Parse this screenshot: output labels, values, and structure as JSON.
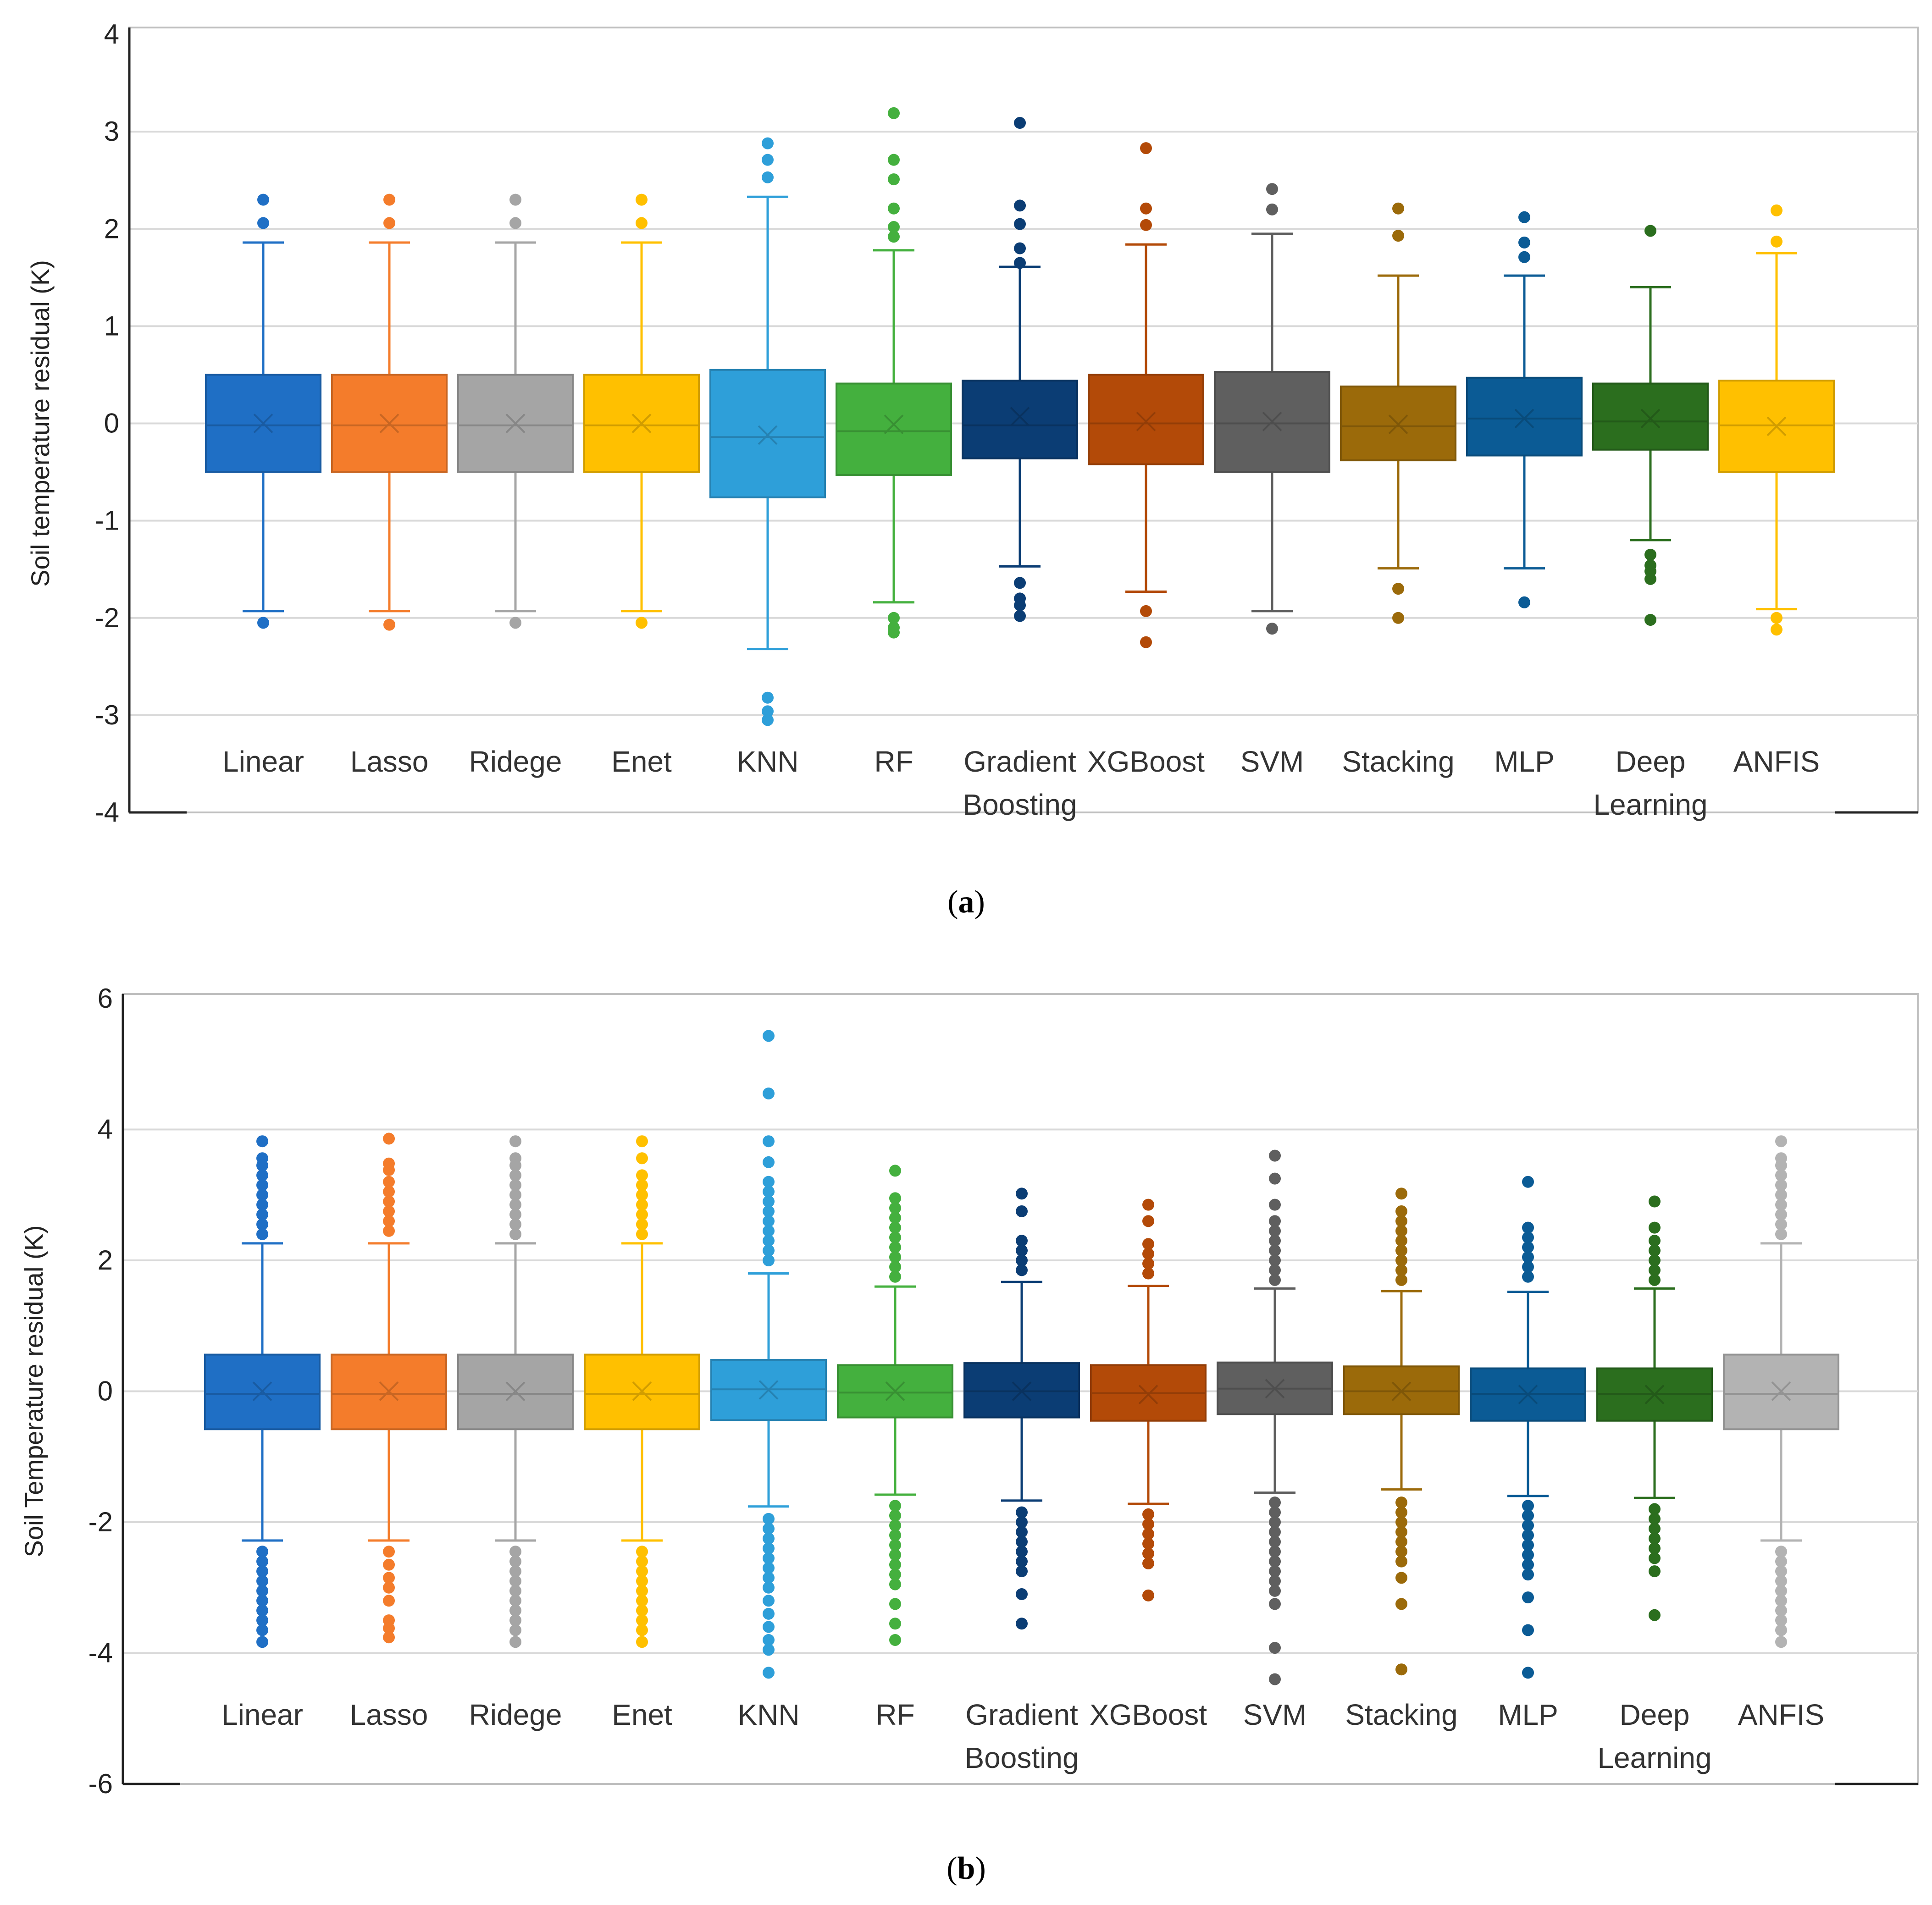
{
  "chart_data": [
    {
      "type": "box",
      "panel": "a",
      "caption_label": "a",
      "ylabel": "Soil temperature residual (K)",
      "ylim": [
        -4,
        4
      ],
      "yticks": [
        4,
        3,
        2,
        1,
        0,
        -1,
        -2,
        -3,
        -4
      ],
      "tick_labels": [
        "4",
        "3",
        "2",
        "1",
        "0",
        "-1",
        "-2",
        "-3",
        "-4"
      ],
      "grid": true,
      "series": [
        {
          "name": "Linear",
          "label_lines": [
            "Linear"
          ],
          "color": "#1f6fc5",
          "q1": -0.5,
          "median": -0.02,
          "q3": 0.5,
          "mean": 0.0,
          "wlo": -1.93,
          "whi": 1.86,
          "outliers": [
            2.3,
            2.06,
            -2.05
          ]
        },
        {
          "name": "Lasso",
          "label_lines": [
            "Lasso"
          ],
          "color": "#f47c2b",
          "q1": -0.5,
          "median": -0.02,
          "q3": 0.5,
          "mean": 0.0,
          "wlo": -1.93,
          "whi": 1.86,
          "outliers": [
            2.3,
            2.06,
            -2.07
          ]
        },
        {
          "name": "Ridege",
          "label_lines": [
            "Ridege"
          ],
          "color": "#a5a5a5",
          "q1": -0.5,
          "median": -0.02,
          "q3": 0.5,
          "mean": 0.0,
          "wlo": -1.93,
          "whi": 1.86,
          "outliers": [
            2.3,
            2.06,
            -2.05
          ]
        },
        {
          "name": "Enet",
          "label_lines": [
            "Enet"
          ],
          "color": "#ffc000",
          "q1": -0.5,
          "median": -0.02,
          "q3": 0.5,
          "mean": 0.0,
          "wlo": -1.93,
          "whi": 1.86,
          "outliers": [
            2.3,
            2.06,
            -2.05
          ]
        },
        {
          "name": "KNN",
          "label_lines": [
            "KNN"
          ],
          "color": "#2e9fd9",
          "q1": -0.76,
          "median": -0.14,
          "q3": 0.55,
          "mean": -0.12,
          "wlo": -2.32,
          "whi": 2.33,
          "outliers": [
            2.88,
            2.71,
            2.53,
            -2.82,
            -2.96,
            -3.05
          ]
        },
        {
          "name": "RF",
          "label_lines": [
            "RF"
          ],
          "color": "#44b03e",
          "q1": -0.53,
          "median": -0.08,
          "q3": 0.41,
          "mean": -0.01,
          "wlo": -1.84,
          "whi": 1.78,
          "outliers": [
            3.19,
            2.71,
            2.51,
            2.21,
            2.02,
            1.92,
            -2.0,
            -2.1,
            -2.15
          ]
        },
        {
          "name": "Gradient Boosting",
          "label_lines": [
            "Gradient",
            "Boosting"
          ],
          "color": "#0b3d74",
          "q1": -0.36,
          "median": -0.02,
          "q3": 0.44,
          "mean": 0.07,
          "wlo": -1.47,
          "whi": 1.61,
          "outliers": [
            3.09,
            2.24,
            2.05,
            1.8,
            1.65,
            -1.64,
            -1.8,
            -1.87,
            -1.98
          ]
        },
        {
          "name": "XGBoost",
          "label_lines": [
            "XGBoost"
          ],
          "color": "#b34a08",
          "q1": -0.42,
          "median": 0.0,
          "q3": 0.5,
          "mean": 0.02,
          "wlo": -1.73,
          "whi": 1.84,
          "outliers": [
            2.83,
            2.21,
            2.04,
            -1.93,
            -2.25
          ]
        },
        {
          "name": "SVM",
          "label_lines": [
            "SVM"
          ],
          "color": "#5f5f5f",
          "q1": -0.5,
          "median": 0.0,
          "q3": 0.53,
          "mean": 0.02,
          "wlo": -1.93,
          "whi": 1.95,
          "outliers": [
            2.41,
            2.2,
            -2.11
          ]
        },
        {
          "name": "Stacking",
          "label_lines": [
            "Stacking"
          ],
          "color": "#9b6a0a",
          "q1": -0.38,
          "median": -0.03,
          "q3": 0.38,
          "mean": -0.01,
          "wlo": -1.49,
          "whi": 1.52,
          "outliers": [
            2.21,
            1.93,
            -1.7,
            -2.0
          ]
        },
        {
          "name": "MLP",
          "label_lines": [
            "MLP"
          ],
          "color": "#0b5b95",
          "q1": -0.33,
          "median": 0.05,
          "q3": 0.47,
          "mean": 0.05,
          "wlo": -1.49,
          "whi": 1.52,
          "outliers": [
            2.12,
            1.86,
            1.71,
            -1.84
          ]
        },
        {
          "name": "Deep Learning",
          "label_lines": [
            "Deep",
            "Learning"
          ],
          "color": "#2b6e1e",
          "q1": -0.27,
          "median": 0.02,
          "q3": 0.41,
          "mean": 0.05,
          "wlo": -1.2,
          "whi": 1.4,
          "outliers": [
            1.98,
            -1.35,
            -1.46,
            -1.52,
            -1.6,
            -2.02
          ]
        },
        {
          "name": "ANFIS",
          "label_lines": [
            "ANFIS"
          ],
          "color": "#ffc000",
          "q1": -0.5,
          "median": -0.02,
          "q3": 0.44,
          "mean": -0.03,
          "wlo": -1.91,
          "whi": 1.75,
          "outliers": [
            2.19,
            1.87,
            -2.0,
            -2.12
          ]
        }
      ]
    },
    {
      "type": "box",
      "panel": "b",
      "caption_label": "b",
      "ylabel": "Soil Temperature residual (K)",
      "ylim": [
        -6,
        6
      ],
      "yticks": [
        6,
        4,
        2,
        0,
        -2,
        -4,
        -6
      ],
      "tick_labels": [
        "6",
        "4",
        "2",
        "0",
        "-2",
        "-4",
        "-6"
      ],
      "grid": true,
      "series": [
        {
          "name": "Linear",
          "label_lines": [
            "Linear"
          ],
          "color": "#1f6fc5",
          "q1": -0.58,
          "median": -0.04,
          "q3": 0.56,
          "mean": 0.0,
          "wlo": -2.28,
          "whi": 2.26,
          "outliers": [
            3.82,
            3.56,
            3.45,
            3.3,
            3.15,
            3.0,
            2.85,
            2.7,
            2.55,
            2.4,
            -2.45,
            -2.6,
            -2.75,
            -2.9,
            -3.05,
            -3.2,
            -3.35,
            -3.5,
            -3.65,
            -3.83
          ]
        },
        {
          "name": "Lasso",
          "label_lines": [
            "Lasso"
          ],
          "color": "#f47c2b",
          "q1": -0.58,
          "median": -0.04,
          "q3": 0.56,
          "mean": 0.0,
          "wlo": -2.28,
          "whi": 2.26,
          "outliers": [
            3.86,
            3.48,
            3.38,
            3.2,
            3.05,
            2.9,
            2.75,
            2.6,
            2.45,
            -2.45,
            -2.65,
            -2.85,
            -3.0,
            -3.2,
            -3.5,
            -3.62,
            -3.76
          ]
        },
        {
          "name": "Ridege",
          "label_lines": [
            "Ridege"
          ],
          "color": "#a5a5a5",
          "q1": -0.58,
          "median": -0.04,
          "q3": 0.56,
          "mean": 0.0,
          "wlo": -2.28,
          "whi": 2.26,
          "outliers": [
            3.82,
            3.56,
            3.45,
            3.3,
            3.15,
            3.0,
            2.85,
            2.7,
            2.55,
            2.4,
            -2.45,
            -2.6,
            -2.75,
            -2.9,
            -3.05,
            -3.2,
            -3.35,
            -3.5,
            -3.65,
            -3.83
          ]
        },
        {
          "name": "Enet",
          "label_lines": [
            "Enet"
          ],
          "color": "#ffc000",
          "q1": -0.58,
          "median": -0.04,
          "q3": 0.56,
          "mean": 0.0,
          "wlo": -2.28,
          "whi": 2.26,
          "outliers": [
            3.82,
            3.56,
            3.3,
            3.15,
            3.0,
            2.85,
            2.7,
            2.55,
            2.4,
            -2.45,
            -2.6,
            -2.75,
            -2.9,
            -3.05,
            -3.2,
            -3.35,
            -3.5,
            -3.65,
            -3.83
          ]
        },
        {
          "name": "KNN",
          "label_lines": [
            "KNN"
          ],
          "color": "#2e9fd9",
          "q1": -0.44,
          "median": 0.03,
          "q3": 0.48,
          "mean": 0.02,
          "wlo": -1.76,
          "whi": 1.8,
          "outliers": [
            5.43,
            4.55,
            3.82,
            3.5,
            3.2,
            3.05,
            2.9,
            2.75,
            2.6,
            2.45,
            2.3,
            2.15,
            2.0,
            -1.95,
            -2.1,
            -2.25,
            -2.4,
            -2.55,
            -2.7,
            -2.85,
            -3.0,
            -3.2,
            -3.4,
            -3.6,
            -3.8,
            -3.95,
            -4.3
          ]
        },
        {
          "name": "RF",
          "label_lines": [
            "RF"
          ],
          "color": "#44b03e",
          "q1": -0.4,
          "median": -0.02,
          "q3": 0.4,
          "mean": 0.0,
          "wlo": -1.58,
          "whi": 1.6,
          "outliers": [
            3.37,
            2.95,
            2.8,
            2.65,
            2.5,
            2.35,
            2.2,
            2.05,
            1.9,
            1.75,
            -1.75,
            -1.9,
            -2.05,
            -2.2,
            -2.35,
            -2.5,
            -2.65,
            -2.8,
            -2.95,
            -3.25,
            -3.55,
            -3.8
          ]
        },
        {
          "name": "Gradient Boosting",
          "label_lines": [
            "Gradient",
            "Boosting"
          ],
          "color": "#0b3d74",
          "q1": -0.4,
          "median": 0.0,
          "q3": 0.43,
          "mean": 0.0,
          "wlo": -1.67,
          "whi": 1.67,
          "outliers": [
            3.02,
            2.75,
            2.3,
            2.15,
            2.0,
            1.85,
            -1.85,
            -2.0,
            -2.15,
            -2.3,
            -2.45,
            -2.6,
            -2.75,
            -3.1,
            -3.55
          ]
        },
        {
          "name": "XGBoost",
          "label_lines": [
            "XGBoost"
          ],
          "color": "#b34a08",
          "q1": -0.45,
          "median": -0.03,
          "q3": 0.4,
          "mean": -0.05,
          "wlo": -1.72,
          "whi": 1.61,
          "outliers": [
            2.85,
            2.6,
            2.25,
            2.1,
            1.95,
            1.8,
            -1.88,
            -2.03,
            -2.18,
            -2.33,
            -2.48,
            -2.63,
            -3.12
          ]
        },
        {
          "name": "SVM",
          "label_lines": [
            "SVM"
          ],
          "color": "#5f5f5f",
          "q1": -0.35,
          "median": 0.04,
          "q3": 0.44,
          "mean": 0.04,
          "wlo": -1.55,
          "whi": 1.57,
          "outliers": [
            3.6,
            3.25,
            2.85,
            2.6,
            2.45,
            2.3,
            2.15,
            2.0,
            1.85,
            1.7,
            -1.7,
            -1.85,
            -2.0,
            -2.15,
            -2.3,
            -2.45,
            -2.6,
            -2.75,
            -2.9,
            -3.05,
            -3.25,
            -3.92,
            -4.4
          ]
        },
        {
          "name": "Stacking",
          "label_lines": [
            "Stacking"
          ],
          "color": "#9b6a0a",
          "q1": -0.35,
          "median": 0.0,
          "q3": 0.38,
          "mean": 0.0,
          "wlo": -1.5,
          "whi": 1.53,
          "outliers": [
            3.02,
            2.75,
            2.6,
            2.45,
            2.3,
            2.15,
            2.0,
            1.85,
            1.7,
            -1.7,
            -1.85,
            -2.0,
            -2.15,
            -2.3,
            -2.45,
            -2.6,
            -2.85,
            -3.25,
            -4.25
          ]
        },
        {
          "name": "MLP",
          "label_lines": [
            "MLP"
          ],
          "color": "#0b5b95",
          "q1": -0.45,
          "median": -0.04,
          "q3": 0.35,
          "mean": -0.05,
          "wlo": -1.6,
          "whi": 1.52,
          "outliers": [
            3.2,
            2.5,
            2.35,
            2.2,
            2.05,
            1.9,
            1.75,
            -1.75,
            -1.9,
            -2.05,
            -2.2,
            -2.35,
            -2.5,
            -2.65,
            -2.8,
            -3.15,
            -3.65,
            -4.3
          ]
        },
        {
          "name": "Deep Learning",
          "label_lines": [
            "Deep",
            "Learning"
          ],
          "color": "#2b6e1e",
          "q1": -0.45,
          "median": -0.04,
          "q3": 0.35,
          "mean": -0.05,
          "wlo": -1.63,
          "whi": 1.57,
          "outliers": [
            2.9,
            2.5,
            2.3,
            2.15,
            2.0,
            1.85,
            1.7,
            -1.8,
            -1.95,
            -2.1,
            -2.25,
            -2.4,
            -2.55,
            -2.75,
            -3.42
          ]
        },
        {
          "name": "ANFIS",
          "label_lines": [
            "ANFIS"
          ],
          "color": "#b3b3b3",
          "q1": -0.58,
          "median": -0.04,
          "q3": 0.56,
          "mean": 0.0,
          "wlo": -2.28,
          "whi": 2.26,
          "outliers": [
            3.82,
            3.56,
            3.45,
            3.3,
            3.15,
            3.0,
            2.85,
            2.7,
            2.55,
            2.4,
            -2.45,
            -2.6,
            -2.75,
            -2.9,
            -3.05,
            -3.2,
            -3.35,
            -3.5,
            -3.65,
            -3.83
          ]
        }
      ]
    }
  ]
}
